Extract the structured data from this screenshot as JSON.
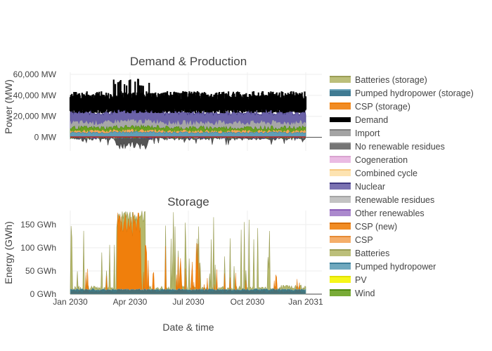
{
  "chart_data": [
    {
      "type": "area",
      "title": "Demand & Production",
      "ylabel": "Power (MW)",
      "yticks": [
        "60,000 MW",
        "40,000 MW",
        "20,000 MW",
        "0 MW"
      ],
      "ylim": [
        -13000,
        62000
      ],
      "x_range": [
        "2030-01-01",
        "2031-01-01"
      ],
      "grid": true,
      "demand_band_mw": [
        23000,
        42000
      ],
      "production_stack_mw": [
        {
          "name": "Wind",
          "values": [
            3000,
            9000
          ]
        },
        {
          "name": "Nuclear",
          "values": [
            14000,
            22000
          ]
        },
        {
          "name": "Import",
          "values": [
            18000,
            25000
          ]
        }
      ],
      "export_min_mw": -12000
    },
    {
      "type": "area",
      "title": "Storage",
      "ylabel": "Energy (GWh)",
      "xlabel": "Date & time",
      "yticks": [
        "150 GWh",
        "100 GWh",
        "50 GWh",
        "0 GWh"
      ],
      "ylim": [
        0,
        180
      ],
      "xticks": [
        "Jan 2030",
        "Apr 2030",
        "Jul 2030",
        "Oct 2030",
        "Jan 2031"
      ],
      "grid": true,
      "series": [
        {
          "name": "CSP (storage)",
          "peak_gwh": 180,
          "peak_period": "Mar–May 2030"
        },
        {
          "name": "Batteries (storage)",
          "peak_gwh": 180
        },
        {
          "name": "Pumped hydropower (storage)",
          "values_gwh": [
            8,
            12
          ]
        }
      ]
    }
  ],
  "legend": {
    "placement": "right",
    "items": [
      {
        "label": "Batteries (storage)",
        "color": "#b5b86b",
        "line": "#9a9d55"
      },
      {
        "label": "Pumped hydropower (storage)",
        "color": "#2b6d87",
        "line": "#6aa3ba"
      },
      {
        "label": "CSP (storage)",
        "color": "#f07f0c",
        "line": "#f07f0c"
      },
      {
        "label": "Demand",
        "color": "#000000",
        "line": "#000000"
      },
      {
        "label": "Import",
        "color": "#9a9a9a",
        "line": "#7e7e7e"
      },
      {
        "label": "No renewable residues",
        "color": "#666666",
        "line": "#8a8a8a"
      },
      {
        "label": "Cogeneration",
        "color": "#e8b4e0",
        "line": "#d9a3d0"
      },
      {
        "label": "Combined cycle",
        "color": "#fde0a8",
        "line": "#f7c87f"
      },
      {
        "label": "Nuclear",
        "color": "#6b62a8",
        "line": "#3f3780"
      },
      {
        "label": "Renewable residues",
        "color": "#bdbdbd",
        "line": "#a5a5a5"
      },
      {
        "label": "Other renewables",
        "color": "#a27cc8",
        "line": "#8a5bb8"
      },
      {
        "label": "CSP (new)",
        "color": "#f07f0c",
        "line": "#d86e00"
      },
      {
        "label": "CSP",
        "color": "#f4a55a",
        "line": "#e58a35"
      },
      {
        "label": "Batteries",
        "color": "#b5b86b",
        "line": "#9a9d55"
      },
      {
        "label": "Pumped hydropower",
        "color": "#5f9fb7",
        "line": "#3a7e9a"
      },
      {
        "label": "PV",
        "color": "#f5f500",
        "line": "#e0e000"
      },
      {
        "label": "Wind",
        "color": "#6aa221",
        "line": "#4f8a10"
      }
    ]
  }
}
